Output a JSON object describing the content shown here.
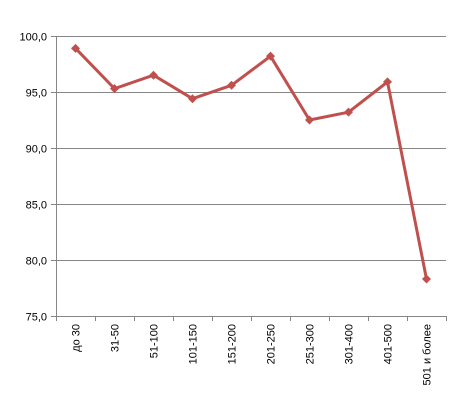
{
  "chart_data": {
    "type": "line",
    "title": "",
    "xlabel": "",
    "ylabel": "",
    "categories": [
      "до 30",
      "31-50",
      "51-100",
      "101-150",
      "151-200",
      "201-250",
      "251-300",
      "301-400",
      "401-500",
      "501 и более"
    ],
    "series": [
      {
        "values": [
          98.9,
          95.3,
          96.5,
          94.4,
          95.6,
          98.2,
          92.5,
          93.2,
          95.9,
          78.3
        ]
      }
    ],
    "ylim": [
      75.0,
      100.0
    ],
    "yticks": [
      75.0,
      80.0,
      85.0,
      90.0,
      95.0,
      100.0
    ],
    "ytick_labels": [
      "75,0",
      "80,0",
      "85,0",
      "90,0",
      "95,0",
      "100,0"
    ],
    "grid": "horizontal",
    "legend": "none",
    "colors": {
      "line": "#c0504d",
      "marker": "#c0504d",
      "grid": "#868686",
      "axis": "#868686"
    },
    "marker": "diamond"
  }
}
